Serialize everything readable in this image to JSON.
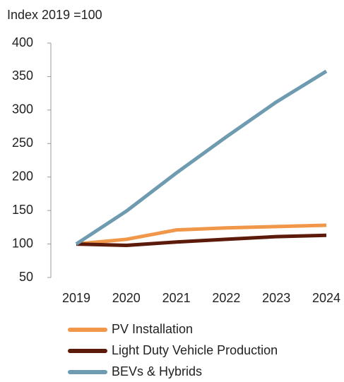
{
  "chart_data": {
    "type": "line",
    "y_axis_label": "Index 2019 =100",
    "categories": [
      "2019",
      "2020",
      "2021",
      "2022",
      "2023",
      "2024"
    ],
    "series": [
      {
        "name": "PV Installation",
        "color": "#f0974a",
        "values": [
          100,
          107,
          121,
          124,
          126,
          128
        ]
      },
      {
        "name": "Light Duty Vehicle Production",
        "color": "#5c1a0b",
        "values": [
          100,
          98,
          103,
          107,
          111,
          113
        ]
      },
      {
        "name": "BEVs & Hybrids",
        "color": "#6e9bb0",
        "values": [
          100,
          149,
          206,
          260,
          312,
          358
        ]
      }
    ],
    "ylim": [
      50,
      400
    ],
    "yticks": [
      50,
      100,
      150,
      200,
      250,
      300,
      350,
      400
    ]
  }
}
